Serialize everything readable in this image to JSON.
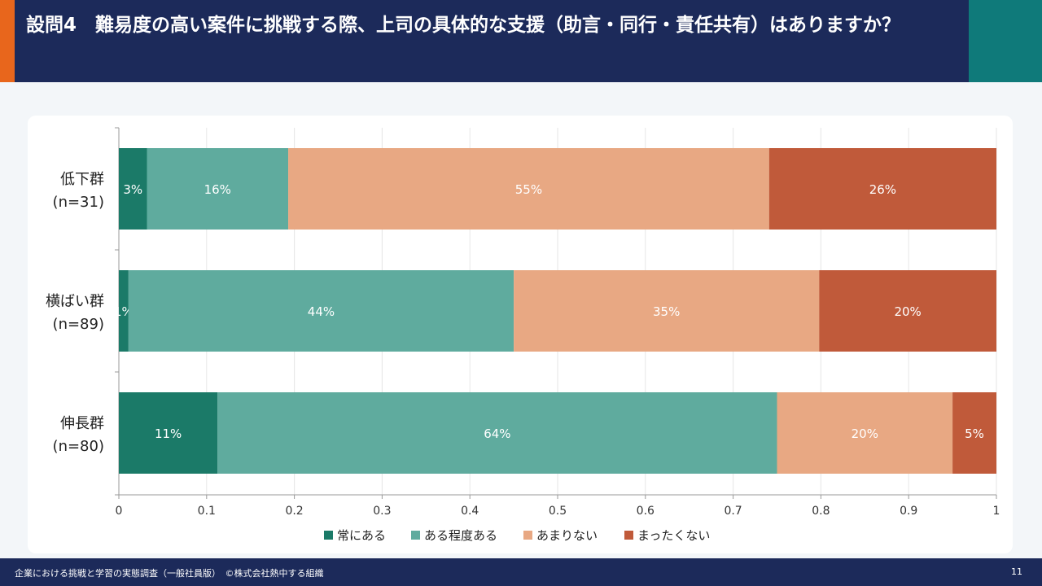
{
  "header": {
    "title": "設問4　難易度の高い案件に挑戦する際、上司の具体的な支援（助言・同行・責任共有）はありますか？"
  },
  "footer": {
    "source": "企業における挑戦と学習の実態調査（一般社員版）　©株式会社熱中する組織",
    "page": "11"
  },
  "chart_data": {
    "type": "bar",
    "orientation": "horizontal",
    "stacked": true,
    "categories": [
      [
        "低下群",
        "(n=31)"
      ],
      [
        "横ばい群",
        "(n=89)"
      ],
      [
        "伸長群",
        "(n=80)"
      ]
    ],
    "series": [
      {
        "name": "常にある",
        "color": "#1b7a68",
        "values": [
          0.032,
          0.011,
          0.1125
        ],
        "labels": [
          "3%",
          "1%",
          "11%"
        ]
      },
      {
        "name": "ある程度ある",
        "color": "#5fab9e",
        "values": [
          0.161,
          0.439,
          0.6375
        ],
        "labels": [
          "16%",
          "44%",
          "64%"
        ]
      },
      {
        "name": "あまりない",
        "color": "#e8a883",
        "values": [
          0.548,
          0.348,
          0.2
        ],
        "labels": [
          "55%",
          "35%",
          "20%"
        ]
      },
      {
        "name": "まったくない",
        "color": "#c05a3a",
        "values": [
          0.259,
          0.202,
          0.05
        ],
        "labels": [
          "26%",
          "20%",
          "5%"
        ]
      }
    ],
    "xlim": [
      0,
      1
    ],
    "xticks": [
      "0",
      "0.1",
      "0.2",
      "0.3",
      "0.4",
      "0.5",
      "0.6",
      "0.7",
      "0.8",
      "0.9",
      "1"
    ],
    "grid": true,
    "legend": "bottom"
  }
}
